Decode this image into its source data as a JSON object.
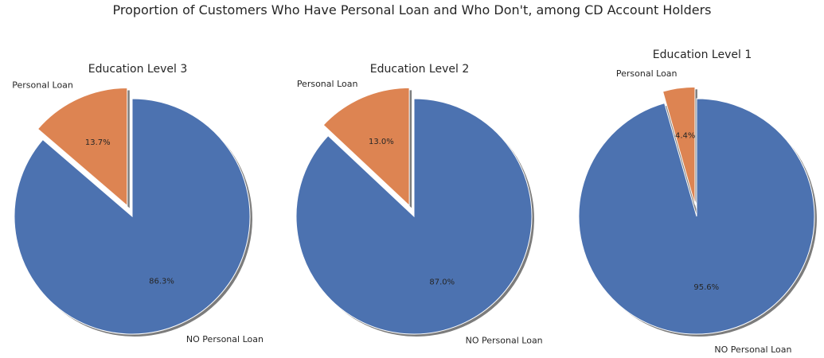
{
  "figure": {
    "title": "Proportion of Customers Who Have Personal Loan and Who Don't, among CD Account Holders"
  },
  "colors": {
    "no_loan": "#4c72b0",
    "loan": "#dd8452",
    "shadow": "#6e6e6e",
    "text": "#262626"
  },
  "chart_data": [
    {
      "type": "pie",
      "title": "Education Level 3",
      "labels": [
        "Personal Loan",
        "NO Personal Loan"
      ],
      "values": [
        13.7,
        86.3
      ],
      "value_labels": [
        "13.7%",
        "86.3%"
      ],
      "exploded": [
        "Personal Loan"
      ],
      "start_angle": "90°, counter-clockwise from Personal Loan",
      "shadow": true
    },
    {
      "type": "pie",
      "title": "Education Level 2",
      "labels": [
        "Personal Loan",
        "NO Personal Loan"
      ],
      "values": [
        13.0,
        87.0
      ],
      "value_labels": [
        "13.0%",
        "87.0%"
      ],
      "exploded": [
        "Personal Loan"
      ],
      "start_angle": "90°, counter-clockwise from Personal Loan",
      "shadow": true
    },
    {
      "type": "pie",
      "title": "Education Level 1",
      "labels": [
        "Personal Loan",
        "NO Personal Loan"
      ],
      "values": [
        4.4,
        95.6
      ],
      "value_labels": [
        "4.4%",
        "95.6%"
      ],
      "exploded": [
        "Personal Loan"
      ],
      "start_angle": "90°, counter-clockwise from Personal Loan",
      "shadow": true
    }
  ]
}
